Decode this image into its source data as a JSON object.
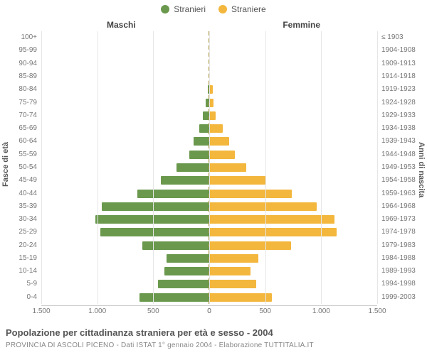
{
  "chart": {
    "type": "population-pyramid",
    "legend": [
      {
        "label": "Stranieri",
        "color": "#6a994e"
      },
      {
        "label": "Straniere",
        "color": "#f3b73e"
      }
    ],
    "column_titles": {
      "left": "Maschi",
      "right": "Femmine"
    },
    "y_left_title": "Fasce di età",
    "y_right_title": "Anni di nascita",
    "x_axis": {
      "max": 1500,
      "ticks_left": [
        "1.500",
        "1.000",
        "500",
        "0"
      ],
      "ticks_right": [
        "0",
        "500",
        "1.000",
        "1.500"
      ]
    },
    "background_color": "#ffffff",
    "grid_color": "#e6e6e6",
    "axis_color": "#cccccc",
    "label_color": "#777777",
    "bar_colors": {
      "male": "#6a994e",
      "female": "#f3b73e"
    },
    "rows": [
      {
        "age": "100+",
        "birth": "≤ 1903",
        "male": 0,
        "female": 0
      },
      {
        "age": "95-99",
        "birth": "1904-1908",
        "male": 0,
        "female": 0
      },
      {
        "age": "90-94",
        "birth": "1909-1913",
        "male": 0,
        "female": 0
      },
      {
        "age": "85-89",
        "birth": "1914-1918",
        "male": 0,
        "female": 0
      },
      {
        "age": "80-84",
        "birth": "1919-1923",
        "male": 10,
        "female": 30
      },
      {
        "age": "75-79",
        "birth": "1924-1928",
        "male": 30,
        "female": 40
      },
      {
        "age": "70-74",
        "birth": "1929-1933",
        "male": 60,
        "female": 60
      },
      {
        "age": "65-69",
        "birth": "1934-1938",
        "male": 90,
        "female": 120
      },
      {
        "age": "60-64",
        "birth": "1939-1943",
        "male": 140,
        "female": 180
      },
      {
        "age": "55-59",
        "birth": "1944-1948",
        "male": 180,
        "female": 230
      },
      {
        "age": "50-54",
        "birth": "1949-1953",
        "male": 290,
        "female": 330
      },
      {
        "age": "45-49",
        "birth": "1954-1958",
        "male": 430,
        "female": 500
      },
      {
        "age": "40-44",
        "birth": "1959-1963",
        "male": 640,
        "female": 740
      },
      {
        "age": "35-39",
        "birth": "1964-1968",
        "male": 960,
        "female": 960
      },
      {
        "age": "30-34",
        "birth": "1969-1973",
        "male": 1020,
        "female": 1120
      },
      {
        "age": "25-29",
        "birth": "1974-1978",
        "male": 970,
        "female": 1140
      },
      {
        "age": "20-24",
        "birth": "1979-1983",
        "male": 600,
        "female": 730
      },
      {
        "age": "15-19",
        "birth": "1984-1988",
        "male": 380,
        "female": 440
      },
      {
        "age": "10-14",
        "birth": "1989-1993",
        "male": 400,
        "female": 370
      },
      {
        "age": "5-9",
        "birth": "1994-1998",
        "male": 460,
        "female": 420
      },
      {
        "age": "0-4",
        "birth": "1999-2003",
        "male": 620,
        "female": 560
      }
    ]
  },
  "caption": {
    "line1": "Popolazione per cittadinanza straniera per età e sesso - 2004",
    "line2": "PROVINCIA DI ASCOLI PICENO - Dati ISTAT 1° gennaio 2004 - Elaborazione TUTTITALIA.IT"
  }
}
